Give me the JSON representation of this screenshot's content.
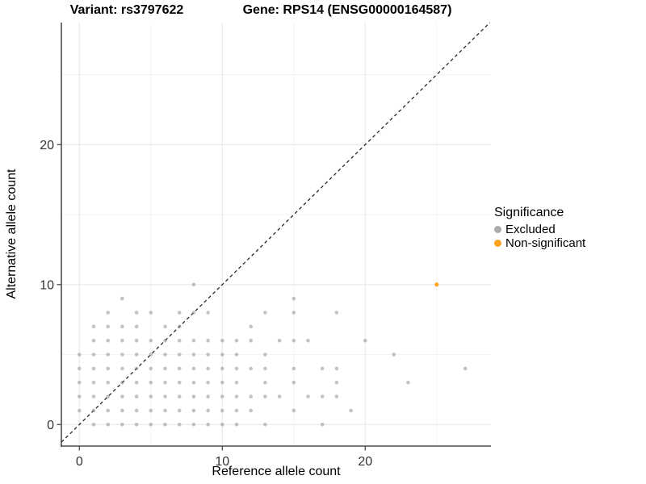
{
  "titles": {
    "variant": "Variant: rs3797622",
    "gene": "Gene: RPS14 (ENSG00000164587)"
  },
  "legend": {
    "title": "Significance",
    "items": [
      {
        "label": "Excluded",
        "color": "#ABABAB"
      },
      {
        "label": "Non-significant",
        "color": "#FFA21F"
      }
    ]
  },
  "chart_data": {
    "type": "scatter",
    "xlabel": "Reference allele count",
    "ylabel": "Alternative allele count",
    "xlim": [
      -1.3,
      28.8
    ],
    "ylim": [
      -1.5,
      28.7
    ],
    "x_major_ticks": [
      0,
      10,
      20
    ],
    "x_minor_ticks": [
      5,
      15,
      25
    ],
    "y_major_ticks": [
      0,
      10,
      20
    ],
    "y_minor_ticks": [
      5,
      15,
      25
    ],
    "grid": "on",
    "legend_position": "right",
    "identity_line": {
      "slope": 1,
      "intercept": 0,
      "style": "dashed",
      "color": "#1a1a1a"
    },
    "series": [
      {
        "name": "Excluded",
        "color": "#878787",
        "opacity": 0.5,
        "radius": 2.3,
        "points": [
          [
            1,
            0
          ],
          [
            2,
            0
          ],
          [
            3,
            0
          ],
          [
            4,
            0
          ],
          [
            5,
            0
          ],
          [
            6,
            0
          ],
          [
            7,
            0
          ],
          [
            8,
            0
          ],
          [
            9,
            0
          ],
          [
            10,
            0
          ],
          [
            11,
            0
          ],
          [
            13,
            0
          ],
          [
            17,
            0
          ],
          [
            0,
            1
          ],
          [
            1,
            1
          ],
          [
            2,
            1
          ],
          [
            3,
            1
          ],
          [
            4,
            1
          ],
          [
            5,
            1
          ],
          [
            6,
            1
          ],
          [
            7,
            1
          ],
          [
            8,
            1
          ],
          [
            9,
            1
          ],
          [
            10,
            1
          ],
          [
            11,
            1
          ],
          [
            12,
            1
          ],
          [
            15,
            1
          ],
          [
            19,
            1
          ],
          [
            0,
            2
          ],
          [
            1,
            2
          ],
          [
            2,
            2
          ],
          [
            3,
            2
          ],
          [
            4,
            2
          ],
          [
            5,
            2
          ],
          [
            6,
            2
          ],
          [
            7,
            2
          ],
          [
            8,
            2
          ],
          [
            9,
            2
          ],
          [
            10,
            2
          ],
          [
            11,
            2
          ],
          [
            12,
            2
          ],
          [
            13,
            2
          ],
          [
            14,
            2
          ],
          [
            16,
            2
          ],
          [
            17,
            2
          ],
          [
            18,
            2
          ],
          [
            0,
            3
          ],
          [
            1,
            3
          ],
          [
            2,
            3
          ],
          [
            3,
            3
          ],
          [
            4,
            3
          ],
          [
            5,
            3
          ],
          [
            6,
            3
          ],
          [
            7,
            3
          ],
          [
            8,
            3
          ],
          [
            9,
            3
          ],
          [
            10,
            3
          ],
          [
            11,
            3
          ],
          [
            13,
            3
          ],
          [
            15,
            3
          ],
          [
            18,
            3
          ],
          [
            23,
            3
          ],
          [
            0,
            4
          ],
          [
            1,
            4
          ],
          [
            2,
            4
          ],
          [
            3,
            4
          ],
          [
            4,
            4
          ],
          [
            5,
            4
          ],
          [
            6,
            4
          ],
          [
            7,
            4
          ],
          [
            8,
            4
          ],
          [
            9,
            4
          ],
          [
            10,
            4
          ],
          [
            11,
            4
          ],
          [
            12,
            4
          ],
          [
            13,
            4
          ],
          [
            15,
            4
          ],
          [
            17,
            4
          ],
          [
            18,
            4
          ],
          [
            27,
            4
          ],
          [
            0,
            5
          ],
          [
            1,
            5
          ],
          [
            2,
            5
          ],
          [
            3,
            5
          ],
          [
            4,
            5
          ],
          [
            5,
            5
          ],
          [
            6,
            5
          ],
          [
            7,
            5
          ],
          [
            8,
            5
          ],
          [
            9,
            5
          ],
          [
            10,
            5
          ],
          [
            11,
            5
          ],
          [
            13,
            5
          ],
          [
            22,
            5
          ],
          [
            1,
            6
          ],
          [
            2,
            6
          ],
          [
            3,
            6
          ],
          [
            4,
            6
          ],
          [
            5,
            6
          ],
          [
            6,
            6
          ],
          [
            7,
            6
          ],
          [
            8,
            6
          ],
          [
            9,
            6
          ],
          [
            10,
            6
          ],
          [
            11,
            6
          ],
          [
            12,
            6
          ],
          [
            14,
            6
          ],
          [
            15,
            6
          ],
          [
            16,
            6
          ],
          [
            20,
            6
          ],
          [
            1,
            7
          ],
          [
            2,
            7
          ],
          [
            3,
            7
          ],
          [
            4,
            7
          ],
          [
            6,
            7
          ],
          [
            7,
            7
          ],
          [
            12,
            7
          ],
          [
            2,
            8
          ],
          [
            4,
            8
          ],
          [
            5,
            8
          ],
          [
            7,
            8
          ],
          [
            8,
            8
          ],
          [
            9,
            8
          ],
          [
            13,
            8
          ],
          [
            15,
            8
          ],
          [
            18,
            8
          ],
          [
            3,
            9
          ],
          [
            15,
            9
          ],
          [
            8,
            10
          ]
        ]
      },
      {
        "name": "Non-significant",
        "color": "#FFA21F",
        "opacity": 1,
        "radius": 2.5,
        "points": [
          [
            25,
            10
          ]
        ]
      }
    ],
    "style": {
      "grid_major_color": "#E8E8E8",
      "grid_minor_color": "#F3F3F3",
      "axis_line_color": "#4D4D4D",
      "tick_color": "#4D4D4D",
      "tick_label_color": "#333333"
    }
  }
}
